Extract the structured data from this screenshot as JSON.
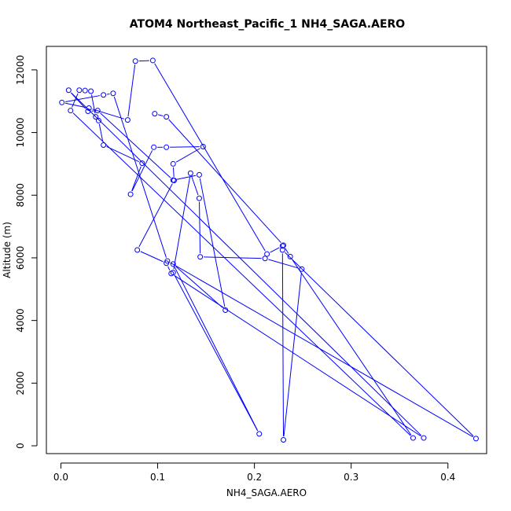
{
  "chart_data": {
    "type": "line",
    "title": "ATOM4 Northeast_Pacific_1 NH4_SAGA.AERO",
    "xlabel": "NH4_SAGA.AERO",
    "ylabel": "Altitude (m)",
    "xlim": [
      -0.015,
      0.44
    ],
    "ylim": [
      -250,
      12750
    ],
    "xticks": [
      0.0,
      0.1,
      0.2,
      0.3,
      0.4
    ],
    "xtick_labels": [
      "0.0",
      "0.1",
      "0.2",
      "0.3",
      "0.4"
    ],
    "yticks": [
      0,
      2000,
      4000,
      6000,
      8000,
      10000,
      12000
    ],
    "ytick_labels": [
      "0",
      "2000",
      "4000",
      "6000",
      "8000",
      "10000",
      "12000"
    ],
    "series_color": "#0000ff",
    "grid": false,
    "series": [
      {
        "x": [
          0.097,
          0.109,
          0.23,
          0.237,
          0.364,
          0.01,
          0.019,
          0.025,
          0.031,
          0.036,
          0.039,
          0.044,
          0.084,
          0.072,
          0.096,
          0.109,
          0.147,
          0.116,
          0.117,
          0.079,
          0.109,
          0.114,
          0.375,
          0.008,
          0.028,
          0.038,
          0.116,
          0.143,
          0.17,
          0.116,
          0.205,
          0.116,
          0.134,
          0.143,
          0.144,
          0.211,
          0.249,
          0.23,
          0.229,
          0.429,
          0.11,
          0.054,
          0.044,
          0.001,
          0.029,
          0.069,
          0.077,
          0.095,
          0.213,
          0.229
        ],
        "y": [
          10600,
          10500,
          6400,
          6040,
          250,
          10700,
          11350,
          11340,
          11320,
          10500,
          10380,
          9600,
          9020,
          8030,
          9530,
          9530,
          9550,
          9000,
          8470,
          6250,
          5830,
          5500,
          250,
          11350,
          10680,
          10700,
          8480,
          8650,
          4330,
          5800,
          380,
          5530,
          8700,
          7900,
          6030,
          5980,
          5640,
          190,
          6250,
          230,
          5900,
          11250,
          11200,
          10960,
          10780,
          10400,
          12280,
          12300,
          6120,
          6380
        ]
      }
    ]
  }
}
